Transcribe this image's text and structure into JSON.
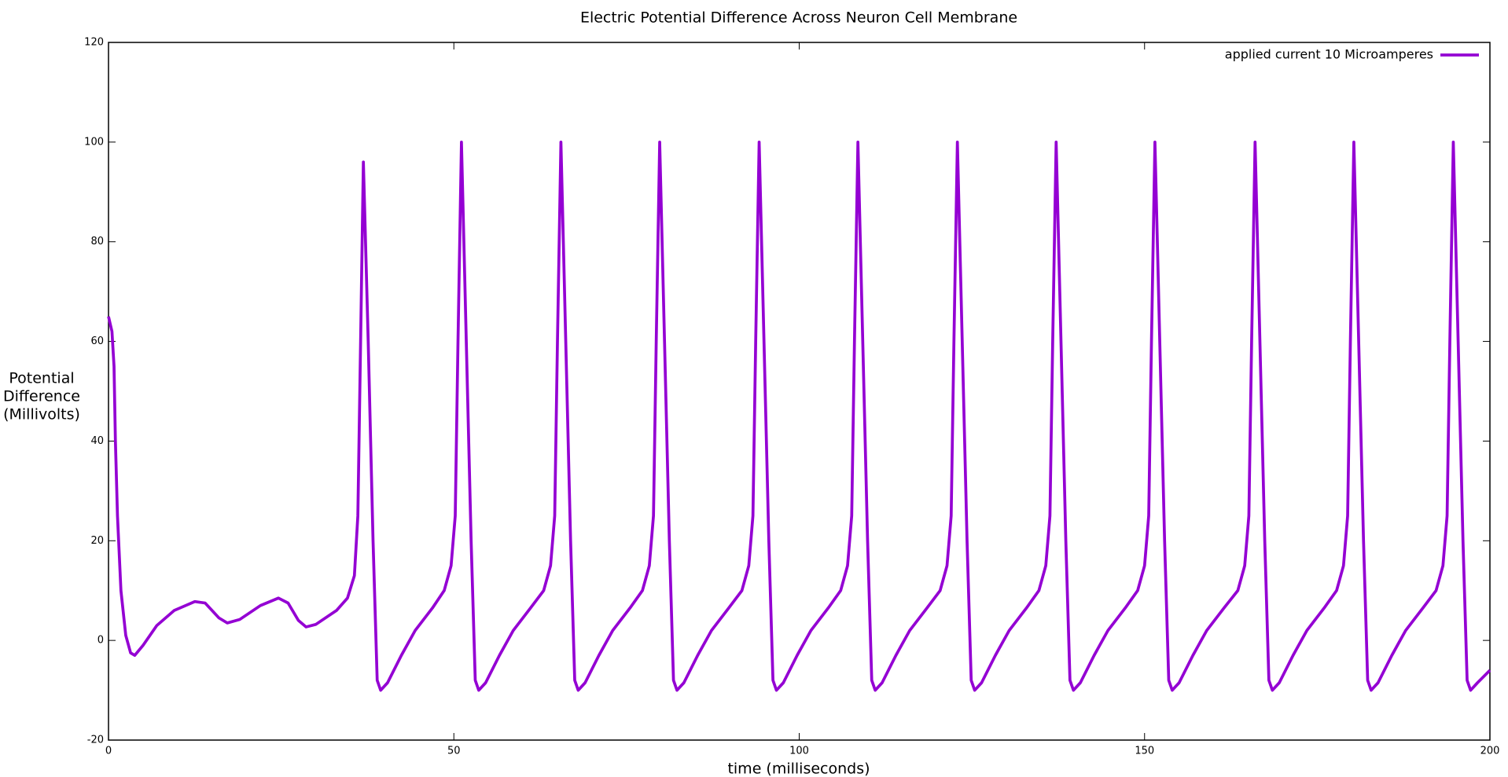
{
  "chart_data": {
    "type": "line",
    "title": "Electric Potential Difference Across Neuron Cell Membrane",
    "xlabel": "time (milliseconds)",
    "ylabel": [
      "Potential",
      "Difference",
      "(Millivolts)"
    ],
    "xlim": [
      0,
      200
    ],
    "xticks": [
      0,
      50,
      100,
      150,
      200
    ],
    "ylim": [
      -20,
      120
    ],
    "yticks": [
      -20,
      0,
      20,
      40,
      60,
      80,
      100,
      120
    ],
    "legend": "top-right",
    "x": [
      0,
      0.5,
      0.8,
      1.0,
      1.3,
      1.8,
      2.5,
      3.2,
      3.8,
      5,
      7,
      9.5,
      12.5,
      14,
      16,
      17.2,
      19,
      22,
      24.6,
      26,
      27.5,
      28.6,
      30,
      33,
      34.6,
      35.6,
      36.1,
      36.5,
      36.9,
      37.6,
      38.3,
      38.9,
      39.4,
      40.4,
      42.4,
      44.4,
      46.9,
      48.6,
      49.6,
      50.2,
      50.6,
      51.1,
      51.8,
      52.5,
      53.1,
      53.6,
      54.6,
      56.6,
      58.6,
      61.1,
      63,
      64,
      64.6,
      65,
      65.5,
      66.2,
      66.9,
      67.5,
      68,
      69,
      71,
      73,
      75.5,
      77.3,
      78.3,
      78.9,
      79.3,
      79.8,
      80.5,
      81.2,
      81.8,
      82.3,
      83.3,
      85.3,
      87.3,
      89.8,
      91.7,
      92.7,
      93.3,
      93.7,
      94.2,
      94.9,
      95.6,
      96.2,
      96.7,
      97.7,
      99.7,
      101.7,
      104.2,
      106,
      107,
      107.6,
      108,
      108.5,
      109.2,
      109.9,
      110.5,
      111,
      112,
      114,
      116,
      118.5,
      120.4,
      121.4,
      122,
      122.4,
      122.9,
      123.6,
      124.3,
      124.9,
      125.4,
      126.4,
      128.4,
      130.4,
      132.9,
      134.7,
      135.7,
      136.3,
      136.7,
      137.2,
      137.9,
      138.6,
      139.2,
      139.7,
      140.7,
      142.7,
      144.7,
      147.2,
      149,
      150,
      150.6,
      151,
      151.5,
      152.2,
      152.9,
      153.5,
      154,
      155,
      157,
      159,
      161.5,
      163.5,
      164.5,
      165.1,
      165.5,
      166,
      166.7,
      167.4,
      168,
      168.5,
      169.5,
      171.5,
      173.5,
      176,
      177.8,
      178.8,
      179.4,
      179.8,
      180.3,
      181,
      181.7,
      182.3,
      182.8,
      183.8,
      185.8,
      187.8,
      190.3,
      192.2,
      193.2,
      193.8,
      194.2,
      194.7,
      195.4,
      196.1,
      196.7,
      197.2,
      198.2,
      200
    ],
    "series": [
      {
        "name": "applied current 10 Microamperes",
        "color": "#9400d3",
        "values": [
          65,
          62,
          55,
          40,
          25,
          10,
          1,
          -2.5,
          -3,
          -1,
          3,
          6,
          7.8,
          7.5,
          4.5,
          3.5,
          4.2,
          7,
          8.5,
          7.5,
          4,
          2.7,
          3.2,
          6,
          8.5,
          13,
          25,
          60,
          96,
          60,
          20,
          -8,
          -10,
          -8.5,
          -3,
          2,
          6.5,
          10,
          15,
          25,
          60,
          100,
          60,
          20,
          -8,
          -10,
          -8.5,
          -3,
          2,
          6.5,
          10,
          15,
          25,
          60,
          100,
          60,
          20,
          -8,
          -10,
          -8.5,
          -3,
          2,
          6.5,
          10,
          15,
          25,
          60,
          100,
          60,
          20,
          -8,
          -10,
          -8.5,
          -3,
          2,
          6.5,
          10,
          15,
          25,
          60,
          100,
          60,
          20,
          -8,
          -10,
          -8.5,
          -3,
          2,
          6.5,
          10,
          15,
          25,
          60,
          100,
          60,
          20,
          -8,
          -10,
          -8.5,
          -3,
          2,
          6.5,
          10,
          15,
          25,
          60,
          100,
          60,
          20,
          -8,
          -10,
          -8.5,
          -3,
          2,
          6.5,
          10,
          15,
          25,
          60,
          100,
          60,
          20,
          -8,
          -10,
          -8.5,
          -3,
          2,
          6.5,
          10,
          15,
          25,
          60,
          100,
          60,
          20,
          -8,
          -10,
          -8.5,
          -3,
          2,
          6.5,
          10,
          15,
          25,
          60,
          100,
          60,
          20,
          -8,
          -10,
          -8.5,
          -3,
          2,
          6.5,
          10,
          15,
          25,
          60,
          100,
          60,
          20,
          -8,
          -10,
          -8.5,
          -3,
          2,
          6.5,
          10,
          15,
          25,
          60,
          100,
          60,
          20,
          -8,
          -10,
          -8.5,
          -6
        ]
      }
    ]
  }
}
